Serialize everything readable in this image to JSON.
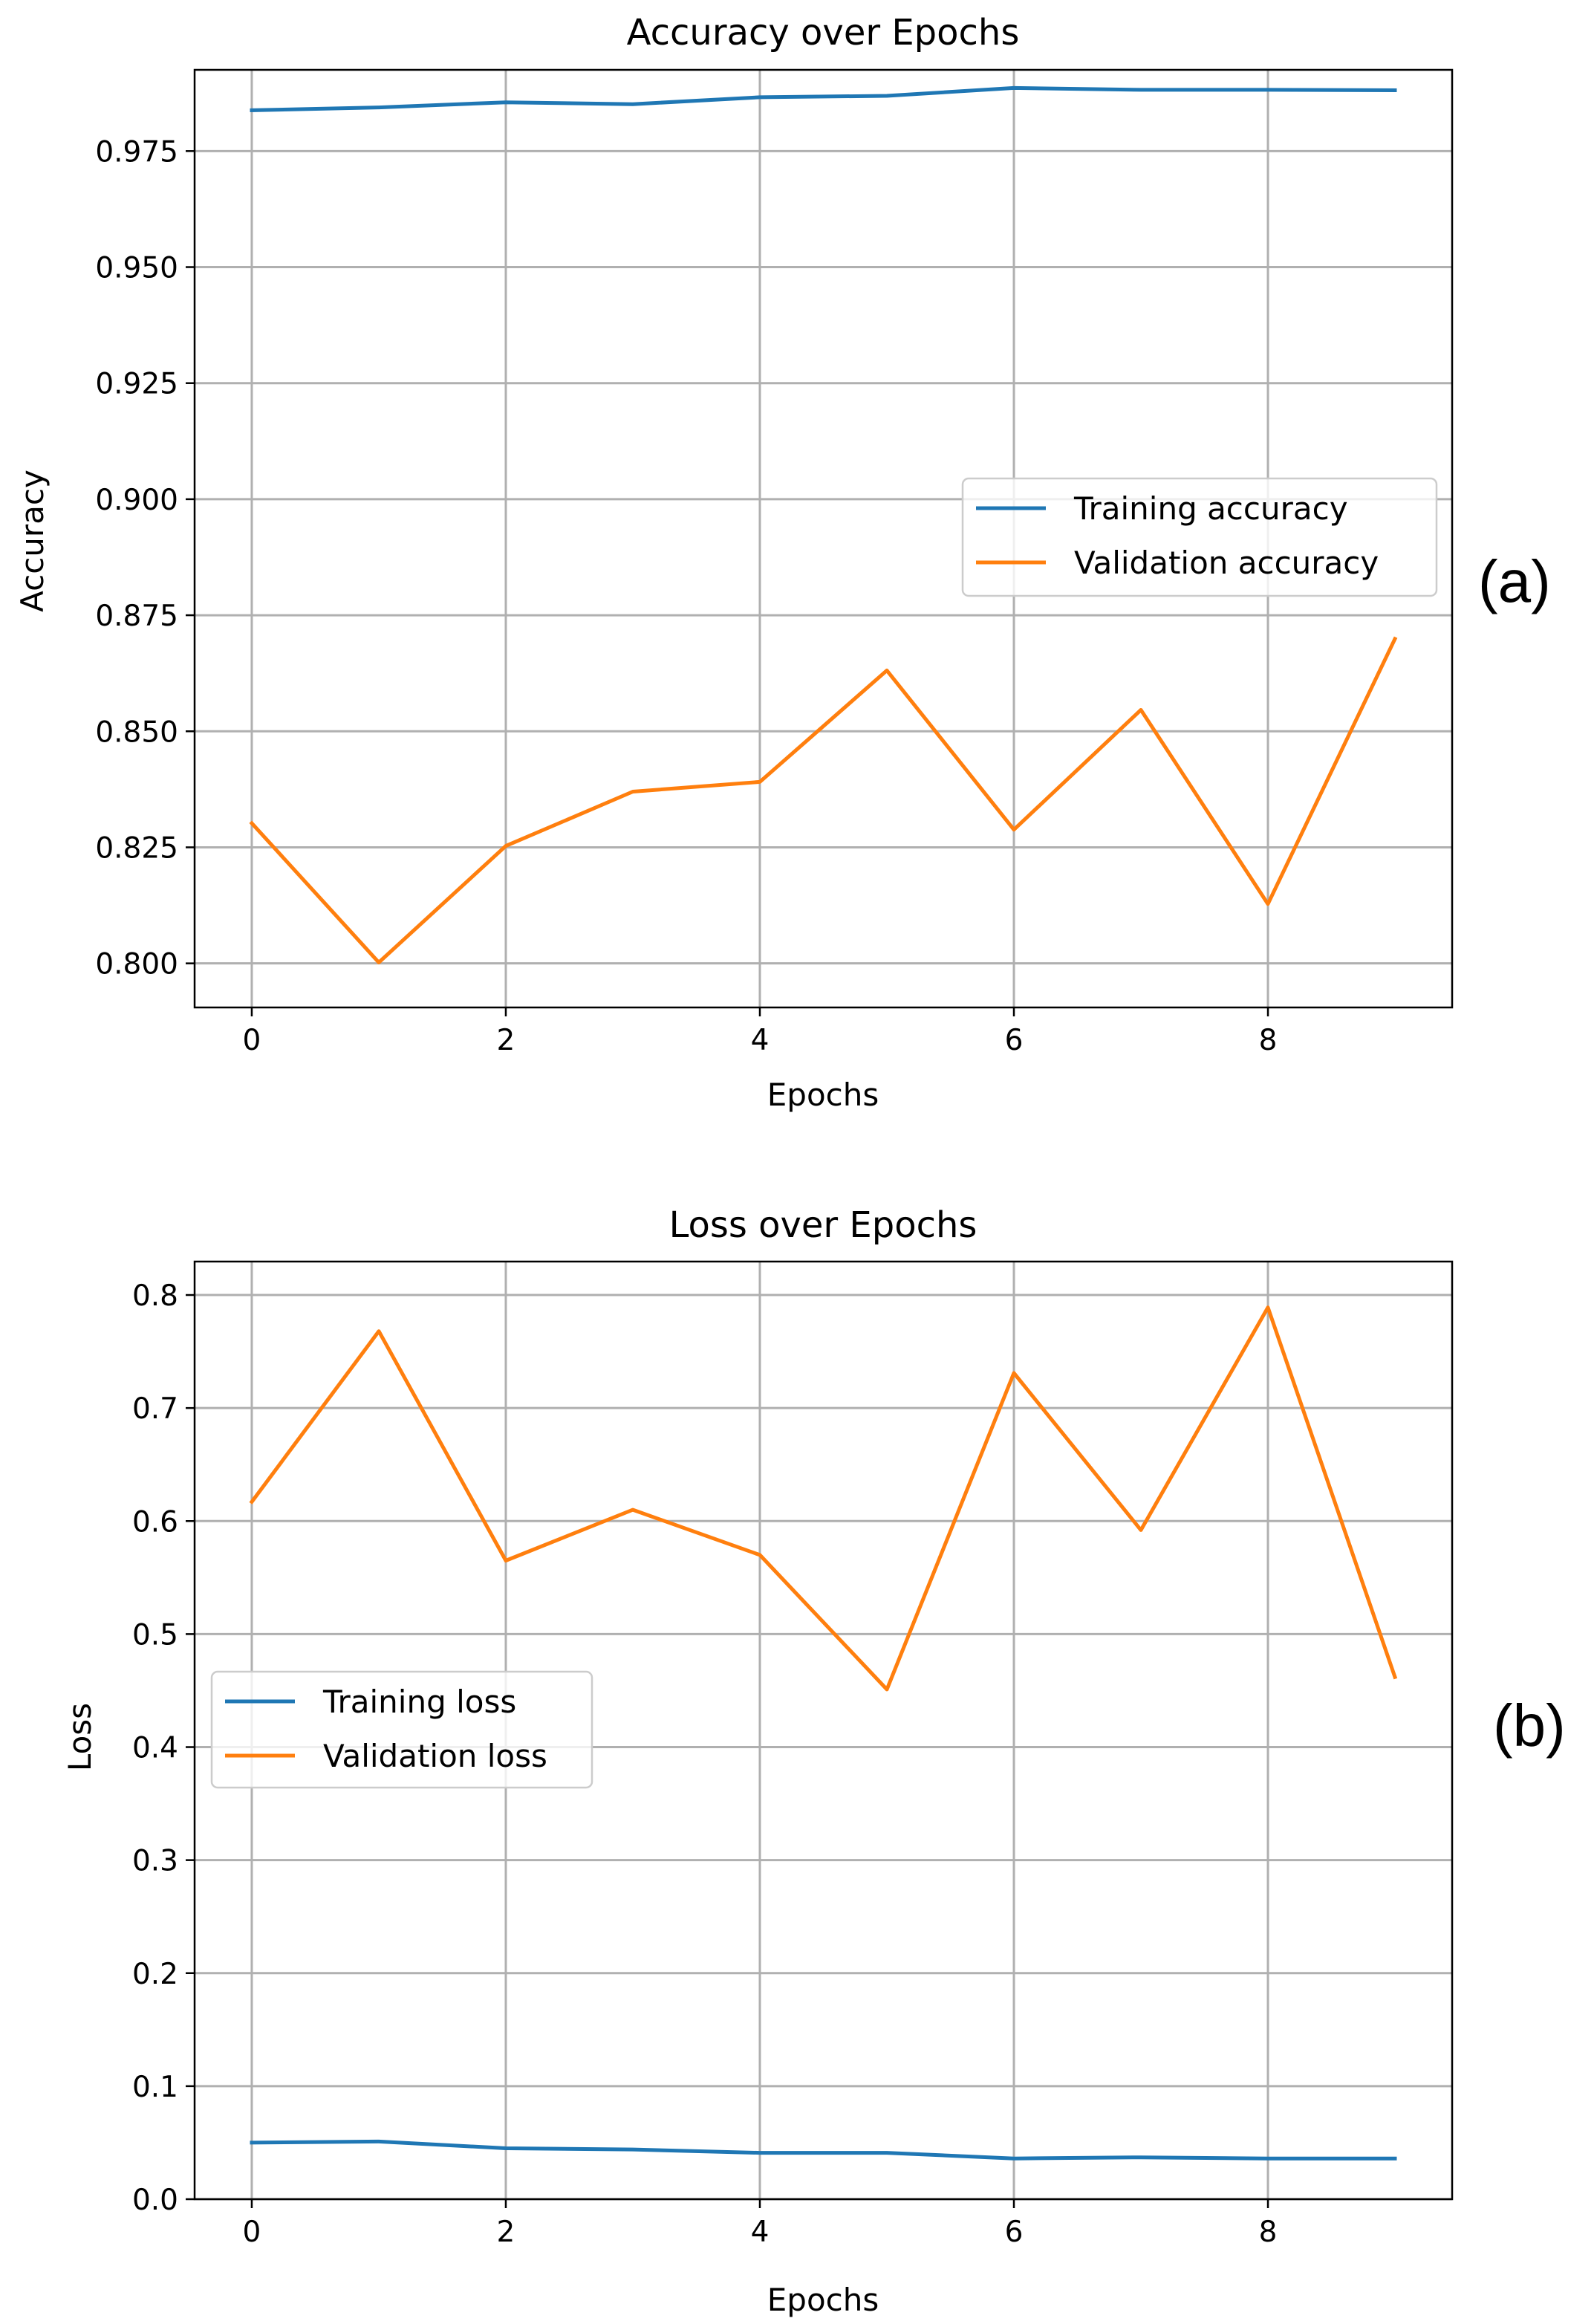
{
  "chart_data": [
    {
      "type": "line",
      "title": "Accuracy over Epochs",
      "xlabel": "Epochs",
      "ylabel": "Accuracy",
      "panel_label": "(a)",
      "x": [
        0,
        1,
        2,
        3,
        4,
        5,
        6,
        7,
        8,
        9
      ],
      "xlim": [
        -0.45,
        9.45
      ],
      "ylim": [
        0.7905,
        0.9925
      ],
      "xticks": [
        0,
        2,
        4,
        6,
        8
      ],
      "xtick_labels": [
        "0",
        "2",
        "4",
        "6",
        "8"
      ],
      "yticks": [
        0.8,
        0.825,
        0.85,
        0.875,
        0.9,
        0.925,
        0.95,
        0.975
      ],
      "ytick_labels": [
        "0.800",
        "0.825",
        "0.850",
        "0.875",
        "0.900",
        "0.925",
        "0.950",
        "0.975"
      ],
      "grid": true,
      "legend_position": "center-right",
      "series": [
        {
          "name": "Training accuracy",
          "color": "#1f77b4",
          "values": [
            0.9838,
            0.9844,
            0.9855,
            0.9851,
            0.9866,
            0.9869,
            0.9886,
            0.9882,
            0.9882,
            0.9881
          ]
        },
        {
          "name": "Validation accuracy",
          "color": "#ff7f0e",
          "values": [
            0.8302,
            0.8002,
            0.8253,
            0.837,
            0.8391,
            0.8631,
            0.8288,
            0.8546,
            0.8128,
            0.8699
          ]
        }
      ]
    },
    {
      "type": "line",
      "title": "Loss over Epochs",
      "xlabel": "Epochs",
      "ylabel": "Loss",
      "panel_label": "(b)",
      "x": [
        0,
        1,
        2,
        3,
        4,
        5,
        6,
        7,
        8,
        9
      ],
      "xlim": [
        -0.45,
        9.45
      ],
      "ylim": [
        0.0,
        0.8296
      ],
      "xticks": [
        0,
        2,
        4,
        6,
        8
      ],
      "xtick_labels": [
        "0",
        "2",
        "4",
        "6",
        "8"
      ],
      "yticks": [
        0.0,
        0.1,
        0.2,
        0.3,
        0.4,
        0.5,
        0.6,
        0.7,
        0.8
      ],
      "ytick_labels": [
        "0.0",
        "0.1",
        "0.2",
        "0.3",
        "0.4",
        "0.5",
        "0.6",
        "0.7",
        "0.8"
      ],
      "grid": true,
      "legend_position": "center-left",
      "series": [
        {
          "name": "Training loss",
          "color": "#1f77b4",
          "values": [
            0.05,
            0.051,
            0.045,
            0.044,
            0.041,
            0.041,
            0.036,
            0.037,
            0.036,
            0.036
          ]
        },
        {
          "name": "Validation loss",
          "color": "#ff7f0e",
          "values": [
            0.617,
            0.768,
            0.565,
            0.61,
            0.57,
            0.451,
            0.731,
            0.592,
            0.789,
            0.462
          ]
        }
      ]
    }
  ]
}
